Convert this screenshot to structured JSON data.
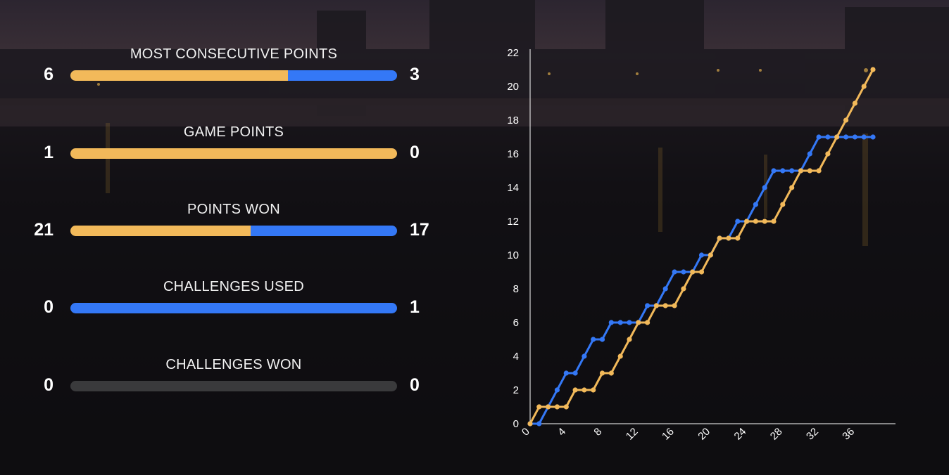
{
  "colors": {
    "player_a": "#f2b95a",
    "player_b": "#3478f6",
    "empty_bar": "#3a3a3c",
    "text": "#ffffff"
  },
  "stats": [
    {
      "title": "MOST CONSECUTIVE POINTS",
      "left_value": "6",
      "right_value": "3",
      "left": 6,
      "right": 3
    },
    {
      "title": "GAME POINTS",
      "left_value": "1",
      "right_value": "0",
      "left": 1,
      "right": 0
    },
    {
      "title": "POINTS WON",
      "left_value": "21",
      "right_value": "17",
      "left": 21,
      "right": 17
    },
    {
      "title": "CHALLENGES USED",
      "left_value": "0",
      "right_value": "1",
      "left": 0,
      "right": 1
    },
    {
      "title": "CHALLENGES WON",
      "left_value": "0",
      "right_value": "0",
      "left": 0,
      "right": 0
    }
  ],
  "chart_data": {
    "type": "line",
    "title": "",
    "xlabel": "",
    "ylabel": "",
    "xlim": [
      0,
      38
    ],
    "ylim": [
      0,
      22
    ],
    "x_ticks": [
      0,
      4,
      8,
      12,
      16,
      20,
      24,
      28,
      32,
      36
    ],
    "y_ticks": [
      0,
      2,
      4,
      6,
      8,
      10,
      12,
      14,
      16,
      18,
      20,
      22
    ],
    "grid": false,
    "x": [
      0,
      1,
      2,
      3,
      4,
      5,
      6,
      7,
      8,
      9,
      10,
      11,
      12,
      13,
      14,
      15,
      16,
      17,
      18,
      19,
      20,
      21,
      22,
      23,
      24,
      25,
      26,
      27,
      28,
      29,
      30,
      31,
      32,
      33,
      34,
      35,
      36,
      37,
      38
    ],
    "series": [
      {
        "color": "#3478f6",
        "values": [
          0,
          0,
          1,
          2,
          3,
          3,
          4,
          5,
          5,
          6,
          6,
          6,
          6,
          7,
          7,
          8,
          9,
          9,
          9,
          10,
          10,
          11,
          11,
          12,
          12,
          13,
          14,
          15,
          15,
          15,
          15,
          16,
          17,
          17,
          17,
          17,
          17,
          17,
          17
        ]
      },
      {
        "color": "#f2b95a",
        "values": [
          0,
          1,
          1,
          1,
          1,
          2,
          2,
          2,
          3,
          3,
          4,
          5,
          6,
          6,
          7,
          7,
          7,
          8,
          9,
          9,
          10,
          11,
          11,
          11,
          12,
          12,
          12,
          12,
          13,
          14,
          15,
          15,
          15,
          16,
          17,
          18,
          19,
          20,
          21
        ]
      }
    ]
  }
}
